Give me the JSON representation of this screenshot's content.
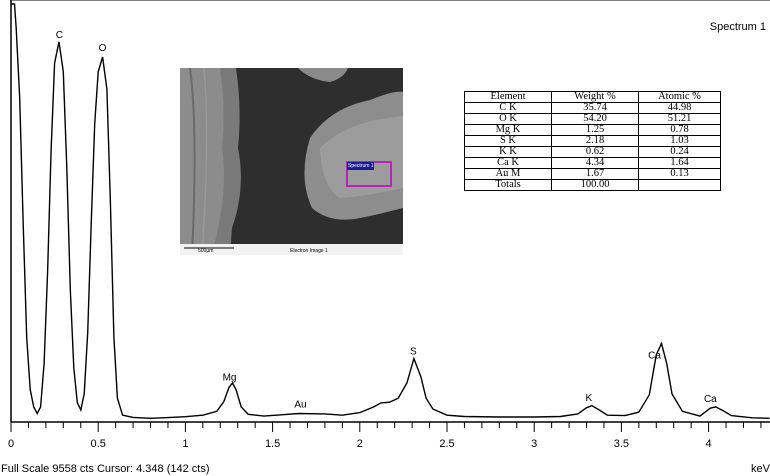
{
  "chart_data": {
    "type": "line",
    "title": "Spectrum 1",
    "xlabel": "keV",
    "ylabel": "",
    "xlim": [
      0,
      4.35
    ],
    "ylim": [
      0,
      9558
    ],
    "x_ticks": [
      "0",
      "0.5",
      "1",
      "1.5",
      "2",
      "2.5",
      "3",
      "3.5",
      "4"
    ],
    "x_tick_values": [
      0,
      0.5,
      1,
      1.5,
      2,
      2.5,
      3,
      3.5,
      4
    ],
    "series": [
      {
        "values": [
          [
            0.0,
            9558
          ],
          [
            0.02,
            9558
          ],
          [
            0.03,
            9000
          ],
          [
            0.05,
            7400
          ],
          [
            0.07,
            4500
          ],
          [
            0.09,
            1900
          ],
          [
            0.11,
            700
          ],
          [
            0.13,
            300
          ],
          [
            0.15,
            150
          ],
          [
            0.17,
            300
          ],
          [
            0.19,
            1300
          ],
          [
            0.21,
            3400
          ],
          [
            0.23,
            6200
          ],
          [
            0.25,
            8200
          ],
          [
            0.275,
            8690
          ],
          [
            0.3,
            8000
          ],
          [
            0.32,
            5800
          ],
          [
            0.34,
            3000
          ],
          [
            0.36,
            1200
          ],
          [
            0.38,
            400
          ],
          [
            0.4,
            230
          ],
          [
            0.42,
            600
          ],
          [
            0.44,
            2000
          ],
          [
            0.46,
            4500
          ],
          [
            0.48,
            6800
          ],
          [
            0.5,
            8000
          ],
          [
            0.525,
            8340
          ],
          [
            0.55,
            7600
          ],
          [
            0.57,
            5000
          ],
          [
            0.59,
            1900
          ],
          [
            0.61,
            500
          ],
          [
            0.64,
            110
          ],
          [
            0.7,
            60
          ],
          [
            0.8,
            40
          ],
          [
            0.9,
            55
          ],
          [
            1.0,
            75
          ],
          [
            1.1,
            110
          ],
          [
            1.18,
            200
          ],
          [
            1.22,
            420
          ],
          [
            1.25,
            750
          ],
          [
            1.27,
            850
          ],
          [
            1.29,
            700
          ],
          [
            1.32,
            300
          ],
          [
            1.36,
            130
          ],
          [
            1.45,
            90
          ],
          [
            1.55,
            120
          ],
          [
            1.65,
            150
          ],
          [
            1.8,
            140
          ],
          [
            1.9,
            110
          ],
          [
            2.0,
            170
          ],
          [
            2.08,
            300
          ],
          [
            2.12,
            390
          ],
          [
            2.17,
            410
          ],
          [
            2.22,
            500
          ],
          [
            2.27,
            850
          ],
          [
            2.31,
            1410
          ],
          [
            2.35,
            1000
          ],
          [
            2.38,
            500
          ],
          [
            2.42,
            250
          ],
          [
            2.5,
            110
          ],
          [
            2.6,
            80
          ],
          [
            2.8,
            70
          ],
          [
            3.0,
            70
          ],
          [
            3.15,
            80
          ],
          [
            3.25,
            140
          ],
          [
            3.3,
            280
          ],
          [
            3.33,
            330
          ],
          [
            3.37,
            240
          ],
          [
            3.42,
            110
          ],
          [
            3.52,
            100
          ],
          [
            3.6,
            180
          ],
          [
            3.66,
            580
          ],
          [
            3.7,
            1500
          ],
          [
            3.73,
            1760
          ],
          [
            3.76,
            1300
          ],
          [
            3.79,
            600
          ],
          [
            3.85,
            200
          ],
          [
            3.95,
            90
          ],
          [
            4.01,
            270
          ],
          [
            4.04,
            300
          ],
          [
            4.08,
            220
          ],
          [
            4.13,
            100
          ],
          [
            4.25,
            50
          ],
          [
            4.35,
            40
          ]
        ]
      }
    ],
    "peak_labels": [
      {
        "label": "C",
        "x": 0.277
      },
      {
        "label": "O",
        "x": 0.525
      },
      {
        "label": "Mg",
        "x": 1.253
      },
      {
        "label": "Au",
        "x": 1.66
      },
      {
        "label": "S",
        "x": 2.307
      },
      {
        "label": "K",
        "x": 3.313
      },
      {
        "label": "Ca",
        "x": 3.69
      },
      {
        "label": "Ca",
        "x": 4.01
      }
    ],
    "grid": false
  },
  "footer_text": "Full Scale 9558 cts Cursor: 4.348  (142 cts)",
  "unit_label": "keV",
  "spectrum_title": "Spectrum 1",
  "sem_image": {
    "spectrum_tag": "Spectrum 1",
    "scale_label": "500µm",
    "caption": "Electron Image 1"
  },
  "table": {
    "headers": [
      "Element",
      "Weight %",
      "Atomic %"
    ],
    "rows": [
      [
        "C K",
        "35.74",
        "44.98"
      ],
      [
        "O K",
        "54.20",
        "51.21"
      ],
      [
        "Mg K",
        "1.25",
        "0.78"
      ],
      [
        "S K",
        "2.18",
        "1.03"
      ],
      [
        "K K",
        "0.62",
        "0.24"
      ],
      [
        "Ca K",
        "4.34",
        "1.64"
      ],
      [
        "Au M",
        "1.67",
        "0.13"
      ],
      [
        "Totals",
        "100.00",
        ""
      ]
    ]
  }
}
